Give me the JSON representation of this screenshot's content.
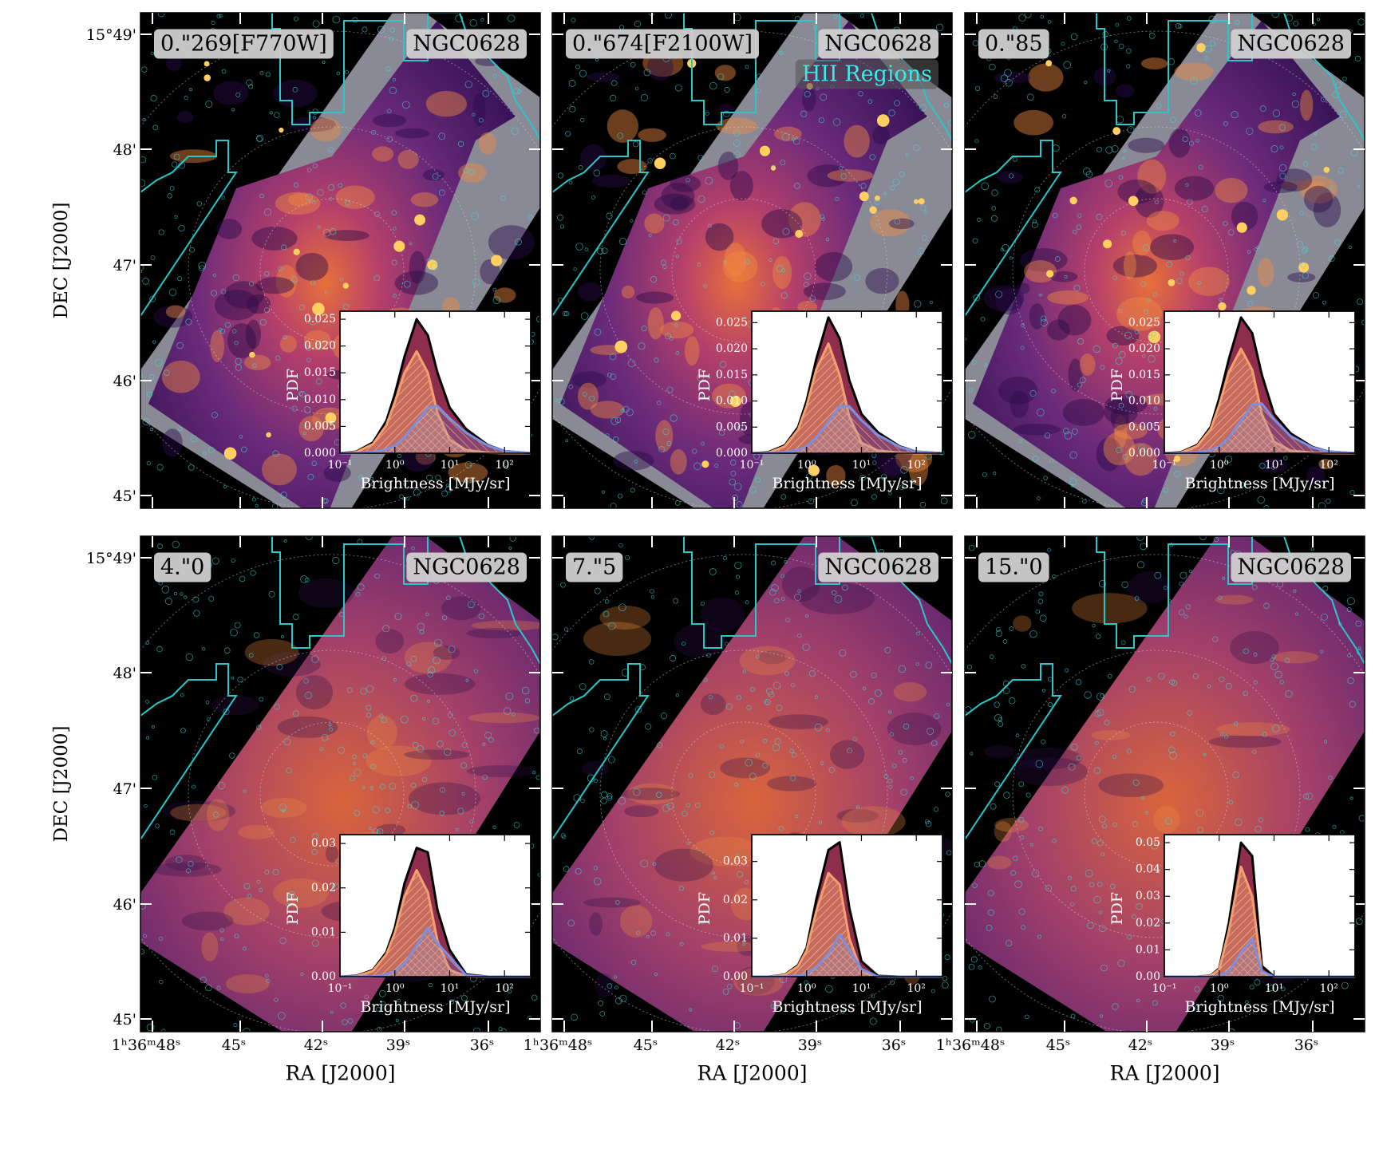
{
  "figure": {
    "ylabel": "DEC [J2000]",
    "xlabel": "RA [J2000]",
    "dec_ticks": [
      "15°49'",
      "48'",
      "47'",
      "46'",
      "45'"
    ],
    "ra_ticks": [
      "1ʰ36ᵐ48ˢ",
      "45ˢ",
      "42ˢ",
      "39ˢ",
      "36ˢ"
    ]
  },
  "chart_data": [
    {
      "type": "line",
      "panel_label": "0.\"269[F770W]",
      "galaxy": "NGC0628",
      "xlabel": "Brightness [MJy/sr]",
      "ylabel": "PDF",
      "log_x": true,
      "x": [
        0.1,
        0.2,
        0.4,
        0.7,
        1,
        1.5,
        2.5,
        4,
        6,
        10,
        20,
        50,
        100,
        300
      ],
      "xlim": [
        0.1,
        300
      ],
      "xticks": [
        {
          "value": 0.1,
          "label": "10⁻¹"
        },
        {
          "value": 1,
          "label": "10⁰"
        },
        {
          "value": 10,
          "label": "10¹"
        },
        {
          "value": 100,
          "label": "10²"
        }
      ],
      "ylim": [
        0,
        0.0265
      ],
      "yticks": [
        {
          "value": 0,
          "label": "0.000"
        },
        {
          "value": 0.005,
          "label": "0.005"
        },
        {
          "value": 0.01,
          "label": "0.010"
        },
        {
          "value": 0.015,
          "label": "0.015"
        },
        {
          "value": 0.02,
          "label": "0.020"
        },
        {
          "value": 0.025,
          "label": "0.025"
        }
      ],
      "series": [
        {
          "color": "#8e2d4c",
          "values": [
            0,
            0.0003,
            0.002,
            0.006,
            0.011,
            0.018,
            0.025,
            0.022,
            0.015,
            0.0085,
            0.0045,
            0.0015,
            0.0004,
            0
          ]
        },
        {
          "color": "#f4a06e",
          "values": [
            0,
            0.0002,
            0.0017,
            0.0052,
            0.0095,
            0.015,
            0.019,
            0.015,
            0.0075,
            0.0025,
            0.0006,
            0.0001,
            0,
            0
          ]
        },
        {
          "color": "#7c8fe0",
          "values": [
            0,
            0,
            0.0002,
            0.0007,
            0.0014,
            0.003,
            0.0058,
            0.0085,
            0.0088,
            0.0065,
            0.0038,
            0.0014,
            0.0004,
            0
          ]
        }
      ]
    },
    {
      "type": "line",
      "panel_label": "0.\"674[F2100W]",
      "galaxy": "NGC0628",
      "overlay_label": "HII Regions",
      "xlabel": "Brightness [MJy/sr]",
      "ylabel": "PDF",
      "log_x": true,
      "x": [
        0.1,
        0.2,
        0.4,
        0.7,
        1,
        1.5,
        2.5,
        4,
        6,
        10,
        20,
        50,
        100,
        300
      ],
      "xlim": [
        0.1,
        300
      ],
      "xticks": [
        {
          "value": 0.1,
          "label": "10⁻¹"
        },
        {
          "value": 1,
          "label": "10⁰"
        },
        {
          "value": 10,
          "label": "10¹"
        },
        {
          "value": 100,
          "label": "10²"
        }
      ],
      "ylim": [
        0,
        0.0272
      ],
      "yticks": [
        {
          "value": 0,
          "label": "0.000"
        },
        {
          "value": 0.005,
          "label": "0.005"
        },
        {
          "value": 0.01,
          "label": "0.010"
        },
        {
          "value": 0.015,
          "label": "0.015"
        },
        {
          "value": 0.02,
          "label": "0.020"
        },
        {
          "value": 0.025,
          "label": "0.025"
        }
      ],
      "series": [
        {
          "color": "#8e2d4c",
          "values": [
            0,
            0.0002,
            0.0015,
            0.005,
            0.01,
            0.018,
            0.026,
            0.022,
            0.014,
            0.0075,
            0.004,
            0.0013,
            0.0003,
            0
          ]
        },
        {
          "color": "#f4a06e",
          "values": [
            0,
            0.0001,
            0.0013,
            0.0045,
            0.009,
            0.016,
            0.021,
            0.015,
            0.007,
            0.002,
            0.0005,
            0.0001,
            0,
            0
          ]
        },
        {
          "color": "#7c8fe0",
          "values": [
            0,
            0,
            0.0002,
            0.0006,
            0.0013,
            0.003,
            0.006,
            0.009,
            0.009,
            0.0063,
            0.0035,
            0.0012,
            0.0003,
            0
          ]
        }
      ]
    },
    {
      "type": "line",
      "panel_label": "0.\"85",
      "galaxy": "NGC0628",
      "xlabel": "Brightness [MJy/sr]",
      "ylabel": "PDF",
      "log_x": true,
      "x": [
        0.1,
        0.2,
        0.4,
        0.7,
        1,
        1.5,
        2.5,
        4,
        6,
        10,
        20,
        50,
        100,
        300
      ],
      "xlim": [
        0.1,
        300
      ],
      "xticks": [
        {
          "value": 0.1,
          "label": "10⁻¹"
        },
        {
          "value": 1,
          "label": "10⁰"
        },
        {
          "value": 10,
          "label": "10¹"
        },
        {
          "value": 100,
          "label": "10²"
        }
      ],
      "ylim": [
        0,
        0.0272
      ],
      "yticks": [
        {
          "value": 0,
          "label": "0.000"
        },
        {
          "value": 0.005,
          "label": "0.005"
        },
        {
          "value": 0.01,
          "label": "0.010"
        },
        {
          "value": 0.015,
          "label": "0.015"
        },
        {
          "value": 0.02,
          "label": "0.020"
        },
        {
          "value": 0.025,
          "label": "0.025"
        }
      ],
      "series": [
        {
          "color": "#8e2d4c",
          "values": [
            0,
            0.0002,
            0.0016,
            0.005,
            0.0105,
            0.018,
            0.026,
            0.023,
            0.015,
            0.0075,
            0.0038,
            0.0012,
            0.0003,
            0
          ]
        },
        {
          "color": "#f4a06e",
          "values": [
            0,
            0.0001,
            0.0014,
            0.0046,
            0.0092,
            0.0155,
            0.02,
            0.016,
            0.0075,
            0.0022,
            0.0005,
            0.0001,
            0,
            0
          ]
        },
        {
          "color": "#7c8fe0",
          "values": [
            0,
            0,
            0.0002,
            0.0006,
            0.0013,
            0.003,
            0.0062,
            0.0093,
            0.0095,
            0.0065,
            0.0033,
            0.0011,
            0.0003,
            0
          ]
        }
      ]
    },
    {
      "type": "line",
      "panel_label": "4.\"0",
      "galaxy": "NGC0628",
      "xlabel": "Brightness [MJy/sr]",
      "ylabel": "PDF",
      "log_x": true,
      "x": [
        0.1,
        0.2,
        0.4,
        0.7,
        1,
        1.5,
        2.5,
        4,
        6,
        10,
        20,
        50,
        100,
        300
      ],
      "xlim": [
        0.1,
        300
      ],
      "xticks": [
        {
          "value": 0.1,
          "label": "10⁻¹"
        },
        {
          "value": 1,
          "label": "10⁰"
        },
        {
          "value": 10,
          "label": "10¹"
        },
        {
          "value": 100,
          "label": "10²"
        }
      ],
      "ylim": [
        0,
        0.032
      ],
      "yticks": [
        {
          "value": 0,
          "label": "0.00"
        },
        {
          "value": 0.01,
          "label": "0.01"
        },
        {
          "value": 0.02,
          "label": "0.02"
        },
        {
          "value": 0.03,
          "label": "0.03"
        }
      ],
      "series": [
        {
          "color": "#8e2d4c",
          "values": [
            0,
            0.0002,
            0.0015,
            0.0055,
            0.011,
            0.021,
            0.029,
            0.028,
            0.015,
            0.006,
            0.0005,
            0,
            0,
            0
          ]
        },
        {
          "color": "#f4a06e",
          "values": [
            0,
            0.0001,
            0.0013,
            0.005,
            0.0098,
            0.018,
            0.024,
            0.019,
            0.008,
            0.0015,
            0.0001,
            0,
            0,
            0
          ]
        },
        {
          "color": "#7c8fe0",
          "values": [
            0,
            0,
            0.0001,
            0.0005,
            0.0012,
            0.003,
            0.007,
            0.011,
            0.0075,
            0.0045,
            0.0003,
            0,
            0,
            0
          ]
        }
      ]
    },
    {
      "type": "line",
      "panel_label": "7.\"5",
      "galaxy": "NGC0628",
      "xlabel": "Brightness [MJy/sr]",
      "ylabel": "PDF",
      "log_x": true,
      "x": [
        0.1,
        0.2,
        0.4,
        0.7,
        1,
        1.5,
        2.5,
        4,
        6,
        10,
        20,
        50,
        100,
        300
      ],
      "xlim": [
        0.1,
        300
      ],
      "xticks": [
        {
          "value": 0.1,
          "label": "10⁻¹"
        },
        {
          "value": 1,
          "label": "10⁰"
        },
        {
          "value": 10,
          "label": "10¹"
        },
        {
          "value": 100,
          "label": "10²"
        }
      ],
      "ylim": [
        0,
        0.037
      ],
      "yticks": [
        {
          "value": 0,
          "label": "0.00"
        },
        {
          "value": 0.01,
          "label": "0.01"
        },
        {
          "value": 0.02,
          "label": "0.02"
        },
        {
          "value": 0.03,
          "label": "0.03"
        }
      ],
      "series": [
        {
          "color": "#8e2d4c",
          "values": [
            0,
            0,
            0.0005,
            0.003,
            0.0075,
            0.02,
            0.033,
            0.035,
            0.018,
            0.004,
            0.0002,
            0,
            0,
            0
          ]
        },
        {
          "color": "#f4a06e",
          "values": [
            0,
            0,
            0.0004,
            0.0027,
            0.0068,
            0.017,
            0.027,
            0.024,
            0.01,
            0.0012,
            0,
            0,
            0,
            0
          ]
        },
        {
          "color": "#7c8fe0",
          "values": [
            0,
            0,
            0,
            0.0003,
            0.0008,
            0.0025,
            0.006,
            0.011,
            0.007,
            0.002,
            0,
            0,
            0,
            0
          ]
        }
      ]
    },
    {
      "type": "line",
      "panel_label": "15.\"0",
      "galaxy": "NGC0628",
      "xlabel": "Brightness [MJy/sr]",
      "ylabel": "PDF",
      "log_x": true,
      "x": [
        0.1,
        0.2,
        0.4,
        0.7,
        1,
        1.5,
        2.5,
        4,
        6,
        10,
        20,
        50,
        100,
        300
      ],
      "xlim": [
        0.1,
        300
      ],
      "xticks": [
        {
          "value": 0.1,
          "label": "10⁻¹"
        },
        {
          "value": 1,
          "label": "10⁰"
        },
        {
          "value": 10,
          "label": "10¹"
        },
        {
          "value": 100,
          "label": "10²"
        }
      ],
      "ylim": [
        0,
        0.053
      ],
      "yticks": [
        {
          "value": 0,
          "label": "0.00"
        },
        {
          "value": 0.01,
          "label": "0.01"
        },
        {
          "value": 0.02,
          "label": "0.02"
        },
        {
          "value": 0.03,
          "label": "0.03"
        },
        {
          "value": 0.04,
          "label": "0.04"
        },
        {
          "value": 0.05,
          "label": "0.05"
        }
      ],
      "series": [
        {
          "color": "#8e2d4c",
          "values": [
            0,
            0,
            0,
            0.0005,
            0.003,
            0.02,
            0.05,
            0.045,
            0.004,
            0,
            0,
            0,
            0,
            0
          ]
        },
        {
          "color": "#f4a06e",
          "values": [
            0,
            0,
            0,
            0.0004,
            0.0026,
            0.017,
            0.041,
            0.03,
            0.0015,
            0,
            0,
            0,
            0,
            0
          ]
        },
        {
          "color": "#7c8fe0",
          "values": [
            0,
            0,
            0,
            0,
            0.0003,
            0.002,
            0.009,
            0.014,
            0.002,
            0,
            0,
            0,
            0,
            0
          ]
        }
      ]
    }
  ]
}
